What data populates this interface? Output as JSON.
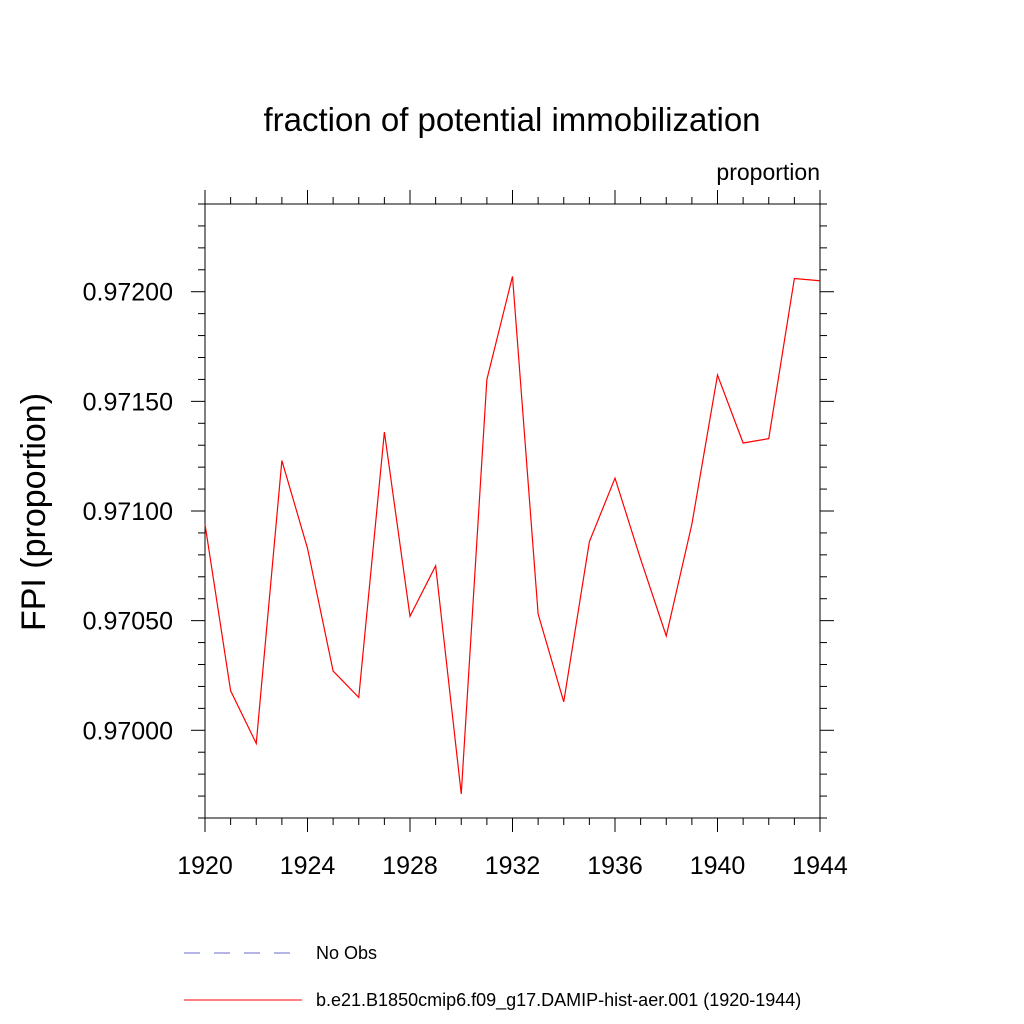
{
  "chart_data": {
    "type": "line",
    "title": "fraction of potential immobilization",
    "units_label": "proportion",
    "xlabel": "",
    "ylabel": "FPI  (proportion)",
    "xlim": [
      1920,
      1944
    ],
    "ylim": [
      0.9696,
      0.9724
    ],
    "x_ticks": [
      1920,
      1924,
      1928,
      1932,
      1936,
      1940,
      1944
    ],
    "x_tick_labels": [
      "1920",
      "1924",
      "1928",
      "1932",
      "1936",
      "1940",
      "1944"
    ],
    "y_ticks": [
      0.97,
      0.9705,
      0.971,
      0.9715,
      0.972
    ],
    "y_tick_labels": [
      "0.97000",
      "0.97050",
      "0.97100",
      "0.97150",
      "0.97200"
    ],
    "grid": false,
    "legend_position": "bottom",
    "series": [
      {
        "name": "No Obs",
        "color": "#6a6acd",
        "dash": "dashed",
        "x": [],
        "values": []
      },
      {
        "name": "b.e21.B1850cmip6.f09_g17.DAMIP-hist-aer.001 (1920-1944)",
        "color": "#ff0000",
        "dash": "solid",
        "x": [
          1920,
          1921,
          1922,
          1923,
          1924,
          1925,
          1926,
          1927,
          1928,
          1929,
          1930,
          1931,
          1932,
          1933,
          1934,
          1935,
          1936,
          1937,
          1938,
          1939,
          1940,
          1941,
          1942,
          1943,
          1944
        ],
        "values": [
          0.97094,
          0.97018,
          0.96994,
          0.97123,
          0.97083,
          0.97027,
          0.97015,
          0.97136,
          0.97052,
          0.97075,
          0.96971,
          0.9716,
          0.97207,
          0.97053,
          0.97013,
          0.97086,
          0.97115,
          0.97078,
          0.97043,
          0.97094,
          0.97162,
          0.97131,
          0.97133,
          0.97206,
          0.97205
        ]
      }
    ]
  }
}
